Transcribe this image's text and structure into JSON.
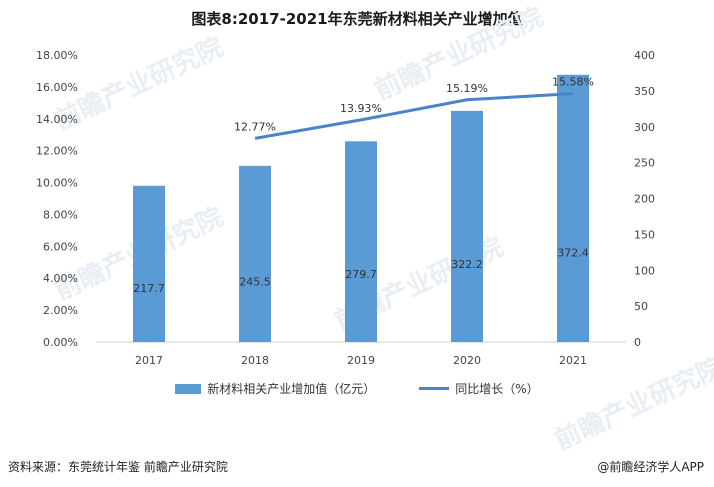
{
  "title": "图表8:2017-2021年东莞新材料相关产业增加值",
  "footer": {
    "source": "资料来源：东莞统计年鉴 前瞻产业研究院",
    "brand": "@前瞻经济学人APP"
  },
  "watermark_text": "前瞻产业研究院",
  "colors": {
    "bar": "#5b9bd5",
    "line": "#4a83c7"
  },
  "chart_data": {
    "type": "bar",
    "categories": [
      "2017",
      "2018",
      "2019",
      "2020",
      "2021"
    ],
    "series": [
      {
        "name": "新材料相关产业增加值（亿元）",
        "type": "bar",
        "axis": "right",
        "values": [
          217.7,
          245.5,
          279.7,
          322.2,
          372.4
        ],
        "labels": [
          "217.7",
          "245.5",
          "279.7",
          "322.2",
          "372.4"
        ]
      },
      {
        "name": "同比增长（%）",
        "type": "line",
        "axis": "left",
        "values": [
          null,
          12.77,
          13.93,
          15.19,
          15.58
        ],
        "labels": [
          null,
          "12.77%",
          "13.93%",
          "15.19%",
          "15.58%"
        ]
      }
    ],
    "left_axis": {
      "min": 0,
      "max": 18,
      "step": 2,
      "ticks": [
        "0.00%",
        "2.00%",
        "4.00%",
        "6.00%",
        "8.00%",
        "10.00%",
        "12.00%",
        "14.00%",
        "16.00%",
        "18.00%"
      ]
    },
    "right_axis": {
      "min": 0,
      "max": 400,
      "step": 50,
      "ticks": [
        "0",
        "50",
        "100",
        "150",
        "200",
        "250",
        "300",
        "350",
        "400"
      ]
    },
    "legend_position": "bottom",
    "grid": false
  }
}
